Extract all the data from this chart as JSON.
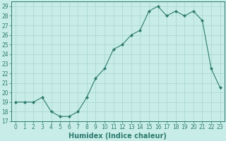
{
  "x": [
    0,
    1,
    2,
    3,
    4,
    5,
    6,
    7,
    8,
    9,
    10,
    11,
    12,
    13,
    14,
    15,
    16,
    17,
    18,
    19,
    20,
    21,
    22,
    23
  ],
  "y": [
    19,
    19,
    19,
    19.5,
    18,
    17.5,
    17.5,
    18,
    19.5,
    21.5,
    22.5,
    24.5,
    25,
    26,
    26.5,
    28.5,
    29,
    28,
    28.5,
    28,
    28.5,
    27.5,
    22.5,
    20.5
  ],
  "line_color": "#2d7a6e",
  "marker": "D",
  "marker_size": 2.0,
  "bg_color": "#c8ede8",
  "grid_color": "#a8d4ce",
  "xlabel": "Humidex (Indice chaleur)",
  "xlim": [
    -0.5,
    23.5
  ],
  "ylim": [
    17,
    29.5
  ],
  "yticks": [
    17,
    18,
    19,
    20,
    21,
    22,
    23,
    24,
    25,
    26,
    27,
    28,
    29
  ],
  "xticks": [
    0,
    1,
    2,
    3,
    4,
    5,
    6,
    7,
    8,
    9,
    10,
    11,
    12,
    13,
    14,
    15,
    16,
    17,
    18,
    19,
    20,
    21,
    22,
    23
  ],
  "tick_color": "#2d7a6e",
  "label_color": "#2d7a6e",
  "font_size": 5.5,
  "xlabel_fontsize": 7.0,
  "linewidth": 0.8
}
